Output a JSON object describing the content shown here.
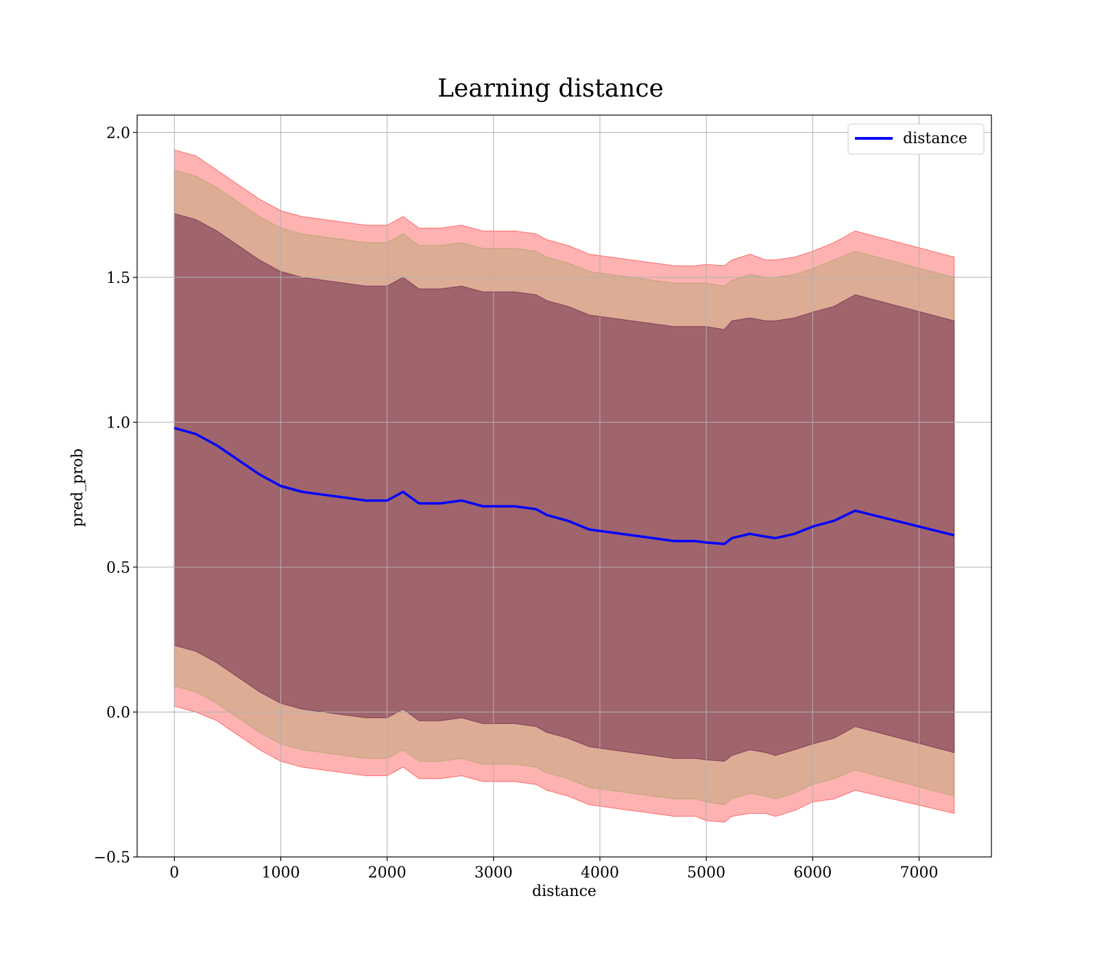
{
  "chart_data": {
    "type": "line",
    "title": "Learning distance",
    "xlabel": "distance",
    "ylabel": "pred_prob",
    "xlim": [
      -350,
      7680
    ],
    "ylim": [
      -0.5,
      2.06
    ],
    "xticks": [
      0,
      1000,
      2000,
      3000,
      4000,
      5000,
      6000,
      7000
    ],
    "yticks": [
      -0.5,
      0.0,
      0.5,
      1.0,
      1.5,
      2.0
    ],
    "xtick_labels": [
      "0",
      "1000",
      "2000",
      "3000",
      "4000",
      "5000",
      "6000",
      "7000"
    ],
    "ytick_labels": [
      "−0.5",
      "0.0",
      "0.5",
      "1.0",
      "1.5",
      "2.0"
    ],
    "grid": true,
    "legend_position": "top-right",
    "series": [
      {
        "name": "distance",
        "color": "#0000ff",
        "x": [
          0,
          200,
          400,
          600,
          800,
          1000,
          1200,
          1400,
          1600,
          1800,
          2000,
          2150,
          2300,
          2500,
          2700,
          2900,
          3000,
          3200,
          3400,
          3500,
          3700,
          3900,
          4100,
          4300,
          4500,
          4700,
          4900,
          5000,
          5170,
          5240,
          5410,
          5560,
          5650,
          5830,
          6000,
          6200,
          6400,
          7330
        ],
        "y": [
          0.98,
          0.96,
          0.92,
          0.87,
          0.82,
          0.78,
          0.76,
          0.75,
          0.74,
          0.73,
          0.73,
          0.76,
          0.72,
          0.72,
          0.73,
          0.71,
          0.71,
          0.71,
          0.7,
          0.68,
          0.66,
          0.63,
          0.62,
          0.61,
          0.6,
          0.59,
          0.59,
          0.585,
          0.58,
          0.6,
          0.615,
          0.605,
          0.6,
          0.615,
          0.64,
          0.66,
          0.695,
          0.61
        ]
      }
    ],
    "bands": [
      {
        "color": "#ff0000",
        "opacity": 0.3,
        "x": [
          0,
          200,
          400,
          600,
          800,
          1000,
          1200,
          1400,
          1600,
          1800,
          2000,
          2150,
          2300,
          2500,
          2700,
          2900,
          3000,
          3200,
          3400,
          3500,
          3700,
          3900,
          4100,
          4300,
          4500,
          4700,
          4900,
          5000,
          5170,
          5240,
          5410,
          5560,
          5650,
          5830,
          6000,
          6200,
          6400,
          7330
        ],
        "upper": [
          1.94,
          1.92,
          1.87,
          1.82,
          1.77,
          1.73,
          1.71,
          1.7,
          1.69,
          1.68,
          1.68,
          1.71,
          1.67,
          1.67,
          1.68,
          1.66,
          1.66,
          1.66,
          1.65,
          1.63,
          1.61,
          1.58,
          1.57,
          1.56,
          1.55,
          1.54,
          1.54,
          1.545,
          1.54,
          1.56,
          1.58,
          1.56,
          1.56,
          1.57,
          1.59,
          1.62,
          1.66,
          1.57
        ],
        "lower": [
          0.02,
          0.0,
          -0.03,
          -0.08,
          -0.13,
          -0.17,
          -0.19,
          -0.2,
          -0.21,
          -0.22,
          -0.22,
          -0.19,
          -0.23,
          -0.23,
          -0.22,
          -0.24,
          -0.24,
          -0.24,
          -0.25,
          -0.27,
          -0.29,
          -0.32,
          -0.33,
          -0.34,
          -0.35,
          -0.36,
          -0.36,
          -0.375,
          -0.38,
          -0.36,
          -0.35,
          -0.35,
          -0.36,
          -0.34,
          -0.31,
          -0.3,
          -0.27,
          -0.35
        ]
      },
      {
        "color": "#90a050",
        "opacity": 0.3,
        "x": [
          0,
          200,
          400,
          600,
          800,
          1000,
          1200,
          1400,
          1600,
          1800,
          2000,
          2150,
          2300,
          2500,
          2700,
          2900,
          3000,
          3200,
          3400,
          3500,
          3700,
          3900,
          4100,
          4300,
          4500,
          4700,
          4900,
          5000,
          5170,
          5240,
          5410,
          5560,
          5650,
          5830,
          6000,
          6200,
          6400,
          7330
        ],
        "upper": [
          1.87,
          1.85,
          1.81,
          1.76,
          1.71,
          1.67,
          1.65,
          1.64,
          1.63,
          1.62,
          1.62,
          1.65,
          1.61,
          1.61,
          1.62,
          1.6,
          1.6,
          1.6,
          1.59,
          1.57,
          1.55,
          1.52,
          1.51,
          1.5,
          1.49,
          1.48,
          1.48,
          1.48,
          1.47,
          1.49,
          1.51,
          1.5,
          1.5,
          1.51,
          1.53,
          1.56,
          1.59,
          1.5
        ],
        "lower": [
          0.09,
          0.07,
          0.03,
          -0.02,
          -0.07,
          -0.11,
          -0.13,
          -0.14,
          -0.15,
          -0.16,
          -0.16,
          -0.13,
          -0.17,
          -0.17,
          -0.16,
          -0.18,
          -0.18,
          -0.18,
          -0.19,
          -0.21,
          -0.23,
          -0.26,
          -0.27,
          -0.28,
          -0.29,
          -0.3,
          -0.3,
          -0.31,
          -0.32,
          -0.3,
          -0.28,
          -0.29,
          -0.3,
          -0.28,
          -0.25,
          -0.23,
          -0.2,
          -0.29
        ]
      },
      {
        "color": "#6d2a4d",
        "opacity": 0.55,
        "x": [
          0,
          200,
          400,
          600,
          800,
          1000,
          1200,
          1400,
          1600,
          1800,
          2000,
          2150,
          2300,
          2500,
          2700,
          2900,
          3000,
          3200,
          3400,
          3500,
          3700,
          3900,
          4100,
          4300,
          4500,
          4700,
          4900,
          5000,
          5170,
          5240,
          5410,
          5560,
          5650,
          5830,
          6000,
          6200,
          6400,
          7330
        ],
        "upper": [
          1.72,
          1.7,
          1.66,
          1.61,
          1.56,
          1.52,
          1.5,
          1.49,
          1.48,
          1.47,
          1.47,
          1.5,
          1.46,
          1.46,
          1.47,
          1.45,
          1.45,
          1.45,
          1.44,
          1.42,
          1.4,
          1.37,
          1.36,
          1.35,
          1.34,
          1.33,
          1.33,
          1.33,
          1.32,
          1.35,
          1.36,
          1.35,
          1.35,
          1.36,
          1.38,
          1.4,
          1.44,
          1.35
        ],
        "lower": [
          0.23,
          0.21,
          0.17,
          0.12,
          0.07,
          0.03,
          0.01,
          0.0,
          -0.01,
          -0.02,
          -0.02,
          0.01,
          -0.03,
          -0.03,
          -0.02,
          -0.04,
          -0.04,
          -0.04,
          -0.05,
          -0.07,
          -0.09,
          -0.12,
          -0.13,
          -0.14,
          -0.15,
          -0.16,
          -0.16,
          -0.165,
          -0.17,
          -0.15,
          -0.13,
          -0.14,
          -0.15,
          -0.13,
          -0.11,
          -0.09,
          -0.05,
          -0.14
        ]
      }
    ]
  }
}
